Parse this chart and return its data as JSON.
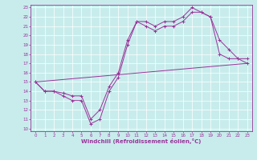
{
  "xlabel": "Windchill (Refroidissement éolien,°C)",
  "xlim": [
    0,
    23
  ],
  "ylim": [
    10,
    23
  ],
  "xticks": [
    0,
    1,
    2,
    3,
    4,
    5,
    6,
    7,
    8,
    9,
    10,
    11,
    12,
    13,
    14,
    15,
    16,
    17,
    18,
    19,
    20,
    21,
    22,
    23
  ],
  "yticks": [
    10,
    11,
    12,
    13,
    14,
    15,
    16,
    17,
    18,
    19,
    20,
    21,
    22,
    23
  ],
  "background_color": "#c8ecec",
  "line_color": "#993399",
  "line1_x": [
    0,
    1,
    2,
    3,
    4,
    5,
    6,
    7,
    8,
    9,
    10,
    11,
    12,
    13,
    14,
    15,
    16,
    17,
    18,
    19,
    20,
    21,
    22,
    23
  ],
  "line1_y": [
    15,
    14,
    14,
    13.5,
    13,
    13,
    10.5,
    11,
    14,
    15.5,
    19,
    21.5,
    21,
    20.5,
    21,
    21,
    21.5,
    22.5,
    22.5,
    22,
    18,
    17.5,
    17.5,
    17
  ],
  "line2_x": [
    0,
    1,
    2,
    3,
    4,
    5,
    6,
    7,
    8,
    9,
    10,
    11,
    12,
    13,
    14,
    15,
    16,
    17,
    18,
    19,
    20,
    21,
    22,
    23
  ],
  "line2_y": [
    15,
    14,
    14,
    13.8,
    13.5,
    13.5,
    11,
    12,
    14.5,
    16,
    19.5,
    21.5,
    21.5,
    21,
    21.5,
    21.5,
    22,
    23,
    22.5,
    22,
    19.5,
    18.5,
    17.5,
    17.5
  ],
  "line3_x": [
    0,
    23
  ],
  "line3_y": [
    15,
    17
  ],
  "marker": "+"
}
